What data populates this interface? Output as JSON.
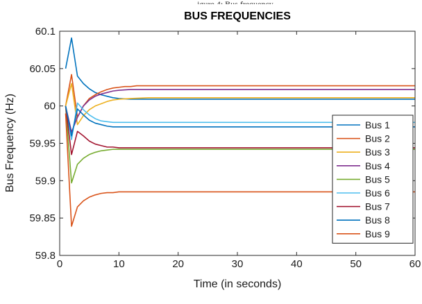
{
  "header_fragment": "igure 4: Bus frequency",
  "chart_data": {
    "type": "line",
    "title": "BUS FREQUENCIES",
    "xlabel": "Time (in seconds)",
    "ylabel": "Bus Frequency (Hz)",
    "xlim": [
      0,
      60
    ],
    "ylim": [
      59.8,
      60.1
    ],
    "xticks": [
      0,
      10,
      20,
      30,
      40,
      50,
      60
    ],
    "yticks": [
      59.8,
      59.85,
      59.9,
      59.95,
      60,
      60.05,
      60.1
    ],
    "xtick_labels": [
      "0",
      "10",
      "20",
      "30",
      "40",
      "50",
      "60"
    ],
    "ytick_labels": [
      "59.8",
      "59.85",
      "59.9",
      "59.95",
      "60",
      "60.05",
      "60.1"
    ],
    "grid": false,
    "legend_position": "right",
    "series": [
      {
        "name": "Bus 1",
        "color": "#0072BD",
        "x": [
          1,
          2,
          3,
          4,
          5,
          6,
          7,
          8,
          9,
          10,
          12,
          15,
          20,
          30,
          60
        ],
        "y": [
          60.05,
          60.091,
          60.04,
          60.03,
          60.023,
          60.018,
          60.015,
          60.013,
          60.011,
          60.01,
          60.009,
          60.009,
          60.009,
          60.009,
          60.009
        ]
      },
      {
        "name": "Bus 2",
        "color": "#D95319",
        "x": [
          1,
          2,
          3,
          4,
          5,
          6,
          7,
          8,
          9,
          10,
          11,
          12,
          13,
          15,
          20,
          30,
          60
        ],
        "y": [
          60.0,
          60.042,
          59.985,
          60.0,
          60.01,
          60.015,
          60.019,
          60.022,
          60.024,
          60.025,
          60.026,
          60.026,
          60.027,
          60.027,
          60.027,
          60.027,
          60.027
        ]
      },
      {
        "name": "Bus 3",
        "color": "#EDB120",
        "x": [
          1,
          2,
          3,
          4,
          5,
          6,
          7,
          8,
          9,
          10,
          12,
          15,
          20,
          30,
          60
        ],
        "y": [
          60.0,
          60.03,
          59.975,
          59.987,
          59.995,
          60.0,
          60.003,
          60.006,
          60.008,
          60.009,
          60.01,
          60.011,
          60.011,
          60.011,
          60.011
        ]
      },
      {
        "name": "Bus 4",
        "color": "#7E2F8E",
        "x": [
          1,
          2,
          3,
          4,
          5,
          6,
          7,
          8,
          9,
          10,
          12,
          15,
          20,
          30,
          60
        ],
        "y": [
          60.0,
          59.965,
          59.985,
          60.0,
          60.008,
          60.013,
          60.016,
          60.018,
          60.02,
          60.021,
          60.022,
          60.022,
          60.022,
          60.022,
          60.022
        ]
      },
      {
        "name": "Bus 5",
        "color": "#77AC30",
        "x": [
          1,
          2,
          3,
          4,
          5,
          6,
          7,
          8,
          9,
          10,
          12,
          15,
          20,
          30,
          60
        ],
        "y": [
          60.0,
          59.897,
          59.922,
          59.93,
          59.935,
          59.938,
          59.94,
          59.941,
          59.942,
          59.942,
          59.942,
          59.942,
          59.942,
          59.942,
          59.942
        ]
      },
      {
        "name": "Bus 6",
        "color": "#4DBEEE",
        "x": [
          1,
          2,
          3,
          4,
          5,
          6,
          7,
          8,
          9,
          10,
          12,
          15,
          20,
          30,
          60
        ],
        "y": [
          60.0,
          59.955,
          60.004,
          59.995,
          59.988,
          59.983,
          59.98,
          59.979,
          59.978,
          59.978,
          59.978,
          59.978,
          59.978,
          59.978,
          59.978
        ]
      },
      {
        "name": "Bus 7",
        "color": "#A2142F",
        "x": [
          1,
          2,
          3,
          4,
          5,
          6,
          7,
          8,
          9,
          10,
          12,
          15,
          20,
          30,
          60
        ],
        "y": [
          60.0,
          59.935,
          59.966,
          59.96,
          59.953,
          59.949,
          59.947,
          59.945,
          59.945,
          59.944,
          59.944,
          59.944,
          59.944,
          59.944,
          59.944
        ]
      },
      {
        "name": "Bus 8",
        "color": "#0072BD",
        "x": [
          1,
          2,
          3,
          4,
          5,
          6,
          7,
          8,
          9,
          10,
          12,
          15,
          20,
          30,
          60
        ],
        "y": [
          60.0,
          59.96,
          59.996,
          59.988,
          59.981,
          59.977,
          59.975,
          59.973,
          59.972,
          59.972,
          59.972,
          59.972,
          59.972,
          59.972,
          59.972
        ]
      },
      {
        "name": "Bus 9",
        "color": "#D95319",
        "x": [
          1,
          2,
          3,
          4,
          5,
          6,
          7,
          8,
          9,
          10,
          12,
          15,
          20,
          30,
          60
        ],
        "y": [
          59.99,
          59.839,
          59.865,
          59.873,
          59.878,
          59.881,
          59.883,
          59.884,
          59.884,
          59.885,
          59.885,
          59.885,
          59.885,
          59.885,
          59.885
        ]
      }
    ]
  }
}
